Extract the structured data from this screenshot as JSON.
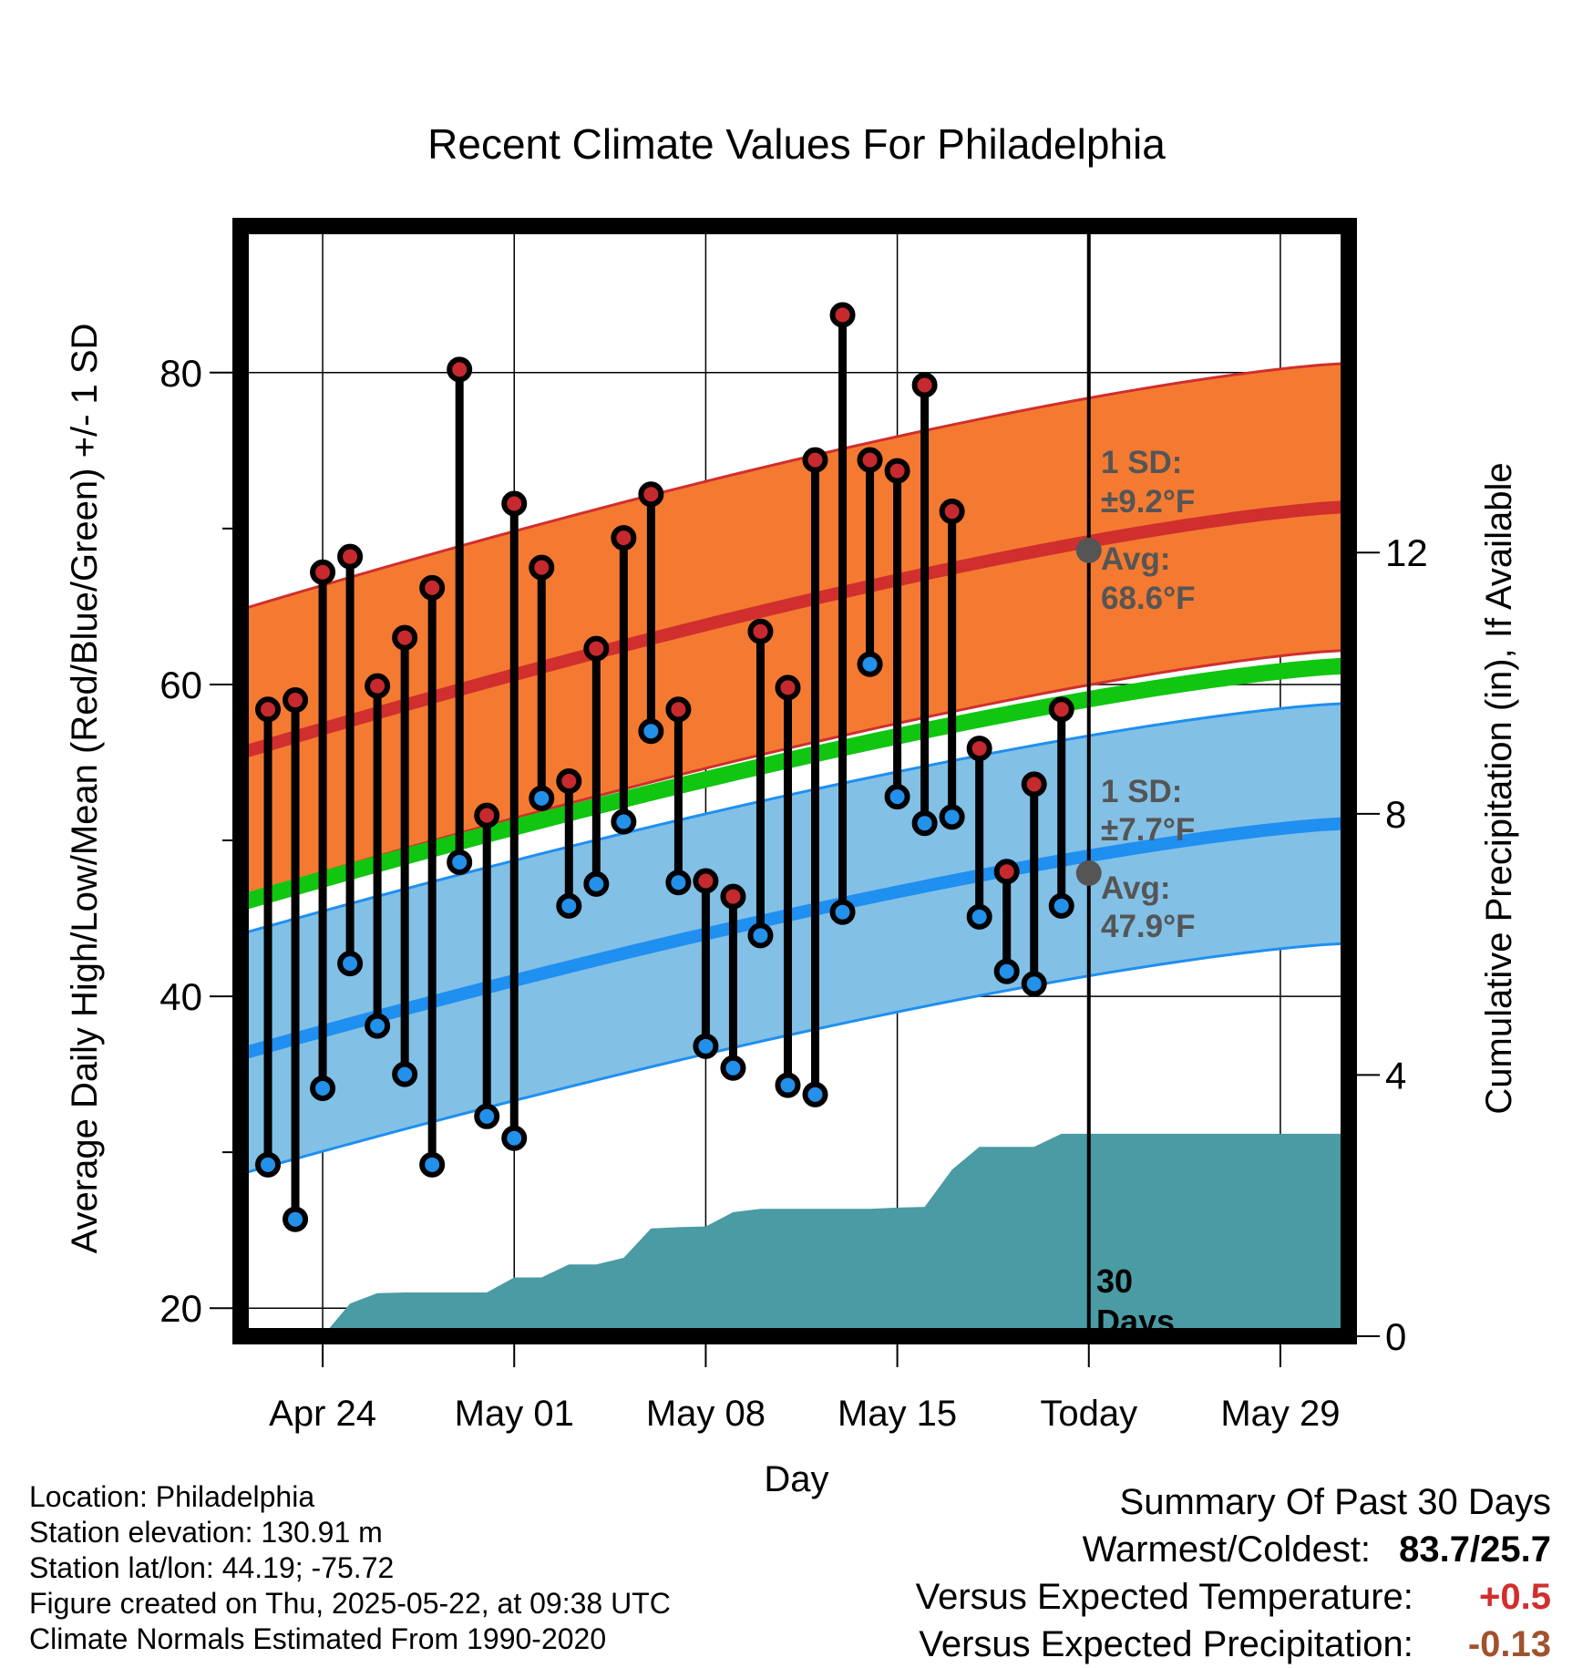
{
  "chart_data": {
    "type": "range-bar",
    "title": "Recent Climate Values For Philadelphia",
    "xlabel": "Day",
    "ylabel": "Average Daily High/Low/Mean (Red/Blue/Green) +/- 1 SD",
    "y2label": "Cumulative Precipitation (in), If Available",
    "ylim": [
      18.2,
      89.4
    ],
    "y2lim": [
      0,
      17.0
    ],
    "yticks": [
      "20",
      "40",
      "60",
      "80"
    ],
    "y2ticks": [
      "0",
      "4",
      "8",
      "12"
    ],
    "xticks": [
      "Apr 24",
      "May 01",
      "May 08",
      "May 15",
      "Today",
      "May 29"
    ],
    "xlim_days": [
      0,
      40.5
    ],
    "today_day": 31,
    "days_label": "30\nDays",
    "days_label_top": "30",
    "days_label_bottom": "Days",
    "daily": {
      "highs": [
        58.4,
        59.0,
        67.2,
        68.2,
        59.9,
        63.0,
        66.2,
        80.2,
        51.6,
        71.6,
        67.5,
        53.8,
        62.3,
        69.4,
        72.2,
        58.4,
        47.4,
        46.4,
        63.4,
        59.8,
        74.4,
        83.7,
        74.4,
        73.7,
        79.2,
        71.1,
        55.9,
        48.0,
        53.6,
        58.4
      ],
      "lows": [
        29.2,
        25.7,
        34.1,
        42.1,
        38.1,
        35.0,
        29.2,
        48.6,
        32.3,
        30.9,
        52.7,
        45.8,
        47.2,
        51.2,
        57.0,
        47.3,
        36.8,
        35.4,
        43.9,
        34.3,
        33.7,
        45.4,
        61.3,
        52.8,
        51.1,
        51.5,
        45.1,
        41.6,
        40.8,
        45.8
      ]
    },
    "normals": {
      "avg_high_start": 55.6,
      "avg_high_end": 71.4,
      "sd_high": 9.2,
      "avg_low_start": 36.3,
      "avg_low_end": 51.1,
      "sd_low": 7.7,
      "avg_mean_start": 46.0,
      "avg_mean_end": 61.2
    },
    "precip_cumulative": {
      "days": [
        0,
        3,
        4,
        5,
        6,
        7,
        8,
        9,
        10,
        11,
        12,
        13,
        14,
        15,
        16,
        17,
        18,
        19,
        20,
        21,
        22,
        23,
        24,
        25,
        26,
        27,
        28,
        29,
        30,
        31,
        40.5
      ],
      "values": [
        0,
        0,
        0.5,
        0.66,
        0.67,
        0.67,
        0.67,
        0.67,
        0.9,
        0.9,
        1.1,
        1.1,
        1.2,
        1.65,
        1.67,
        1.68,
        1.9,
        1.95,
        1.95,
        1.95,
        1.95,
        1.95,
        1.97,
        1.98,
        2.55,
        2.9,
        2.9,
        2.9,
        3.1,
        3.1,
        3.1
      ]
    },
    "today_annotations": {
      "high_sd": "1 SD:",
      "high_sd_val": "±9.2°F",
      "high_avg": "Avg:",
      "high_avg_val": "68.6°F",
      "high_avg_value": 68.6,
      "low_sd": "1 SD:",
      "low_sd_val": "±7.7°F",
      "low_avg": "Avg:",
      "low_avg_val": "47.9°F",
      "low_avg_value": 47.9
    },
    "colors": {
      "high_band": "#f47a31",
      "high_line": "#d02f2d",
      "low_band": "#82c0e6",
      "low_line": "#1f8ff0",
      "mean_line": "#11c611",
      "precip": "#4a9ba3",
      "high_dot": "#c62a2e",
      "low_dot": "#2390e9",
      "today_dot": "#555555",
      "annotation": "#555555"
    }
  },
  "footer": {
    "location": "Location: Philadelphia",
    "elevation": "Station elevation: 130.91 m",
    "latlon": "Station lat/lon: 44.19; -75.72",
    "created": "Figure created on Thu, 2025-05-22, at 09:38 UTC",
    "normals": "Climate Normals Estimated From 1990-2020"
  },
  "summary": {
    "title": "Summary Of Past 30 Days",
    "warmest_label": "Warmest/Coldest:",
    "warmest_value": "83.7/25.7",
    "temp_label": "Versus Expected Temperature:",
    "temp_value": "+0.5",
    "temp_color": "#d02f2d",
    "precip_label": "Versus Expected Precipitation:",
    "precip_value": "-0.13",
    "precip_color": "#a0522d"
  }
}
